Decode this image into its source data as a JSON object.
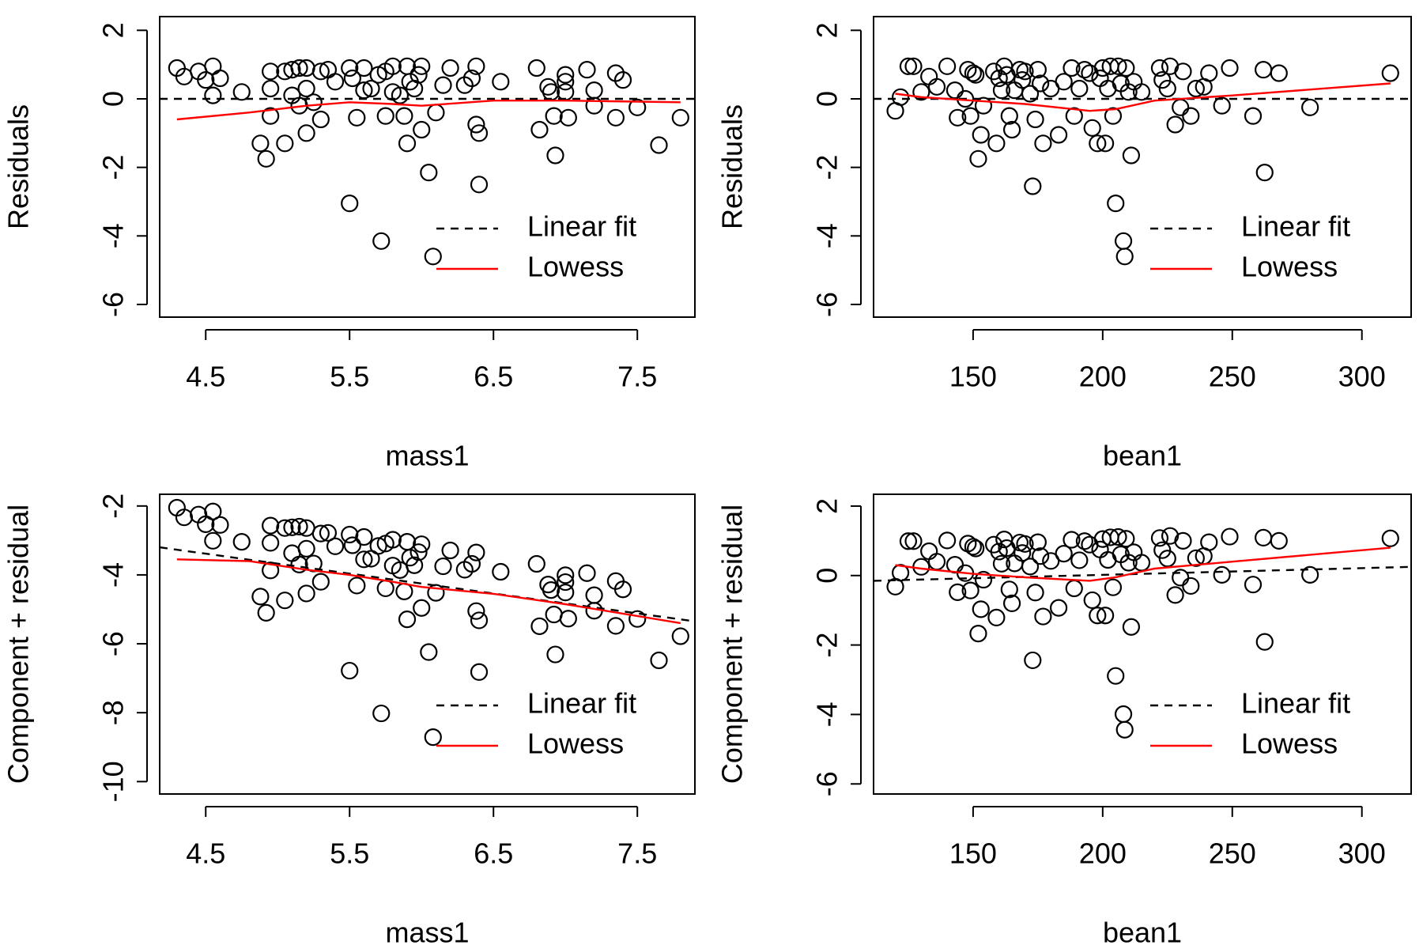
{
  "chart_data": [
    {
      "type": "scatter",
      "x_label": "mass1",
      "y_label": "Residuals",
      "xlim": [
        4.18,
        7.9
      ],
      "ylim": [
        -6.37,
        2.4
      ],
      "xticks": [
        4.5,
        5.5,
        6.5,
        7.5
      ],
      "yticks": [
        -6,
        -4,
        -2,
        0,
        2
      ],
      "color": "#000000",
      "x": [
        4.3,
        4.35,
        4.45,
        4.5,
        4.55,
        4.55,
        4.6,
        4.75,
        4.88,
        4.92,
        4.95,
        4.95,
        4.95,
        5.05,
        5.05,
        5.1,
        5.1,
        5.15,
        5.15,
        5.2,
        5.2,
        5.2,
        5.25,
        5.3,
        5.3,
        5.35,
        5.4,
        5.5,
        5.5,
        5.52,
        5.55,
        5.6,
        5.6,
        5.65,
        5.7,
        5.72,
        5.75,
        5.75,
        5.8,
        5.8,
        5.85,
        5.88,
        5.9,
        5.9,
        5.92,
        5.95,
        5.98,
        6.0,
        6.0,
        6.05,
        6.08,
        6.1,
        6.15,
        6.2,
        6.3,
        6.35,
        6.38,
        6.38,
        6.4,
        6.4,
        6.55,
        6.8,
        6.82,
        6.88,
        6.9,
        6.92,
        6.93,
        7.0,
        7.0,
        7.0,
        7.02,
        7.15,
        7.2,
        7.2,
        7.35,
        7.35,
        7.4,
        7.5,
        7.65,
        7.8
      ],
      "values": [
        0.9,
        0.65,
        0.8,
        0.55,
        0.95,
        0.1,
        0.6,
        0.2,
        -1.3,
        -1.75,
        0.8,
        0.3,
        -0.5,
        0.8,
        -1.3,
        0.85,
        0.1,
        0.9,
        -0.2,
        0.9,
        -1.0,
        0.3,
        -0.1,
        -0.6,
        0.8,
        0.85,
        0.5,
        0.9,
        -3.05,
        0.6,
        -0.55,
        0.9,
        0.25,
        0.3,
        0.7,
        -4.15,
        0.8,
        -0.5,
        0.95,
        0.2,
        0.1,
        -0.5,
        -1.3,
        0.95,
        0.5,
        0.3,
        0.7,
        -0.9,
        0.95,
        -2.15,
        -4.6,
        -0.4,
        0.4,
        0.9,
        0.4,
        0.6,
        -0.75,
        0.95,
        -2.5,
        -1.0,
        0.5,
        0.9,
        -0.9,
        0.35,
        0.2,
        -0.5,
        -1.65,
        0.5,
        0.7,
        0.2,
        -0.55,
        0.85,
        -0.2,
        0.25,
        0.75,
        -0.55,
        0.55,
        -0.25,
        -1.35,
        -0.55
      ],
      "series": [
        {
          "name": "Linear fit",
          "color": "#000000",
          "dash": true,
          "x": [
            4.18,
            7.9
          ],
          "values": [
            0,
            0
          ]
        },
        {
          "name": "Lowess",
          "color": "#ff0000",
          "dash": false,
          "x": [
            4.3,
            4.8,
            5.2,
            5.5,
            5.8,
            6.0,
            6.5,
            7.0,
            7.8
          ],
          "values": [
            -0.6,
            -0.4,
            -0.2,
            -0.1,
            -0.15,
            -0.2,
            -0.05,
            -0.05,
            -0.1
          ]
        }
      ]
    },
    {
      "type": "scatter",
      "x_label": "bean1",
      "y_label": "Residuals",
      "xlim": [
        111.6,
        319
      ],
      "ylim": [
        -6.37,
        2.4
      ],
      "xticks": [
        150,
        200,
        250,
        300
      ],
      "yticks": [
        -6,
        -4,
        -2,
        0,
        2
      ],
      "color": "#000000",
      "x": [
        120,
        122,
        125,
        127,
        130,
        133,
        136,
        140,
        143,
        144,
        147,
        148,
        149,
        150,
        151,
        152,
        153,
        154,
        158,
        159,
        160,
        161,
        162,
        163,
        164,
        165,
        166,
        168,
        169,
        170,
        172,
        173,
        174,
        175,
        176,
        177,
        180,
        183,
        185,
        188,
        189,
        191,
        193,
        195,
        196,
        198,
        199,
        200,
        201,
        202,
        203,
        204,
        205,
        206,
        207,
        208,
        208.5,
        209,
        210,
        211,
        212,
        215,
        222,
        223,
        225,
        226,
        228,
        230,
        231,
        234,
        236,
        239,
        241,
        246,
        249,
        258,
        262,
        262.5,
        268,
        280,
        311
      ],
      "values": [
        -0.35,
        0.05,
        0.95,
        0.95,
        0.2,
        0.65,
        0.35,
        0.95,
        0.25,
        -0.55,
        0.0,
        0.85,
        -0.5,
        0.75,
        0.7,
        -1.75,
        -1.05,
        -0.2,
        0.8,
        -1.3,
        0.6,
        0.25,
        0.95,
        0.7,
        -0.5,
        -0.9,
        0.25,
        0.85,
        0.55,
        0.8,
        0.15,
        -2.55,
        -0.6,
        0.85,
        0.45,
        -1.3,
        0.3,
        -1.05,
        0.5,
        0.9,
        -0.5,
        0.3,
        0.85,
        0.75,
        -0.85,
        -1.3,
        0.6,
        0.9,
        -1.3,
        0.3,
        0.95,
        -0.5,
        -3.05,
        0.95,
        0.45,
        -4.15,
        -4.6,
        0.9,
        0.2,
        -1.65,
        0.5,
        0.2,
        0.9,
        0.55,
        0.3,
        0.95,
        -0.75,
        -0.25,
        0.8,
        -0.5,
        0.3,
        0.35,
        0.75,
        -0.2,
        0.9,
        -0.5,
        0.85,
        -2.15,
        0.75,
        -0.25,
        0.75
      ],
      "series": [
        {
          "name": "Linear fit",
          "color": "#000000",
          "dash": true,
          "x": [
            111.6,
            319
          ],
          "values": [
            0,
            0
          ]
        },
        {
          "name": "Lowess",
          "color": "#ff0000",
          "dash": false,
          "x": [
            120,
            130,
            150,
            170,
            195,
            205,
            220,
            250,
            311
          ],
          "values": [
            0.15,
            0.05,
            -0.05,
            -0.15,
            -0.35,
            -0.3,
            -0.05,
            0.1,
            0.45
          ]
        }
      ]
    },
    {
      "type": "scatter",
      "x_label": "mass1",
      "y_label": "Component + residual",
      "xlim": [
        4.18,
        7.9
      ],
      "ylim": [
        -10.36,
        -1.66
      ],
      "xticks": [
        4.5,
        5.5,
        6.5,
        7.5
      ],
      "yticks": [
        -10,
        -8,
        -6,
        -4,
        -2
      ],
      "color": "#000000",
      "x": [
        4.3,
        4.35,
        4.45,
        4.5,
        4.55,
        4.55,
        4.6,
        4.75,
        4.88,
        4.92,
        4.95,
        4.95,
        4.95,
        5.05,
        5.05,
        5.1,
        5.1,
        5.15,
        5.15,
        5.2,
        5.2,
        5.2,
        5.25,
        5.3,
        5.3,
        5.35,
        5.4,
        5.5,
        5.5,
        5.52,
        5.55,
        5.6,
        5.6,
        5.65,
        5.7,
        5.72,
        5.75,
        5.75,
        5.8,
        5.8,
        5.85,
        5.88,
        5.9,
        5.9,
        5.92,
        5.95,
        5.98,
        6.0,
        6.0,
        6.05,
        6.08,
        6.1,
        6.15,
        6.2,
        6.3,
        6.35,
        6.38,
        6.38,
        6.4,
        6.4,
        6.55,
        6.8,
        6.82,
        6.88,
        6.9,
        6.92,
        6.93,
        7.0,
        7.0,
        7.0,
        7.02,
        7.15,
        7.2,
        7.2,
        7.35,
        7.35,
        7.4,
        7.5,
        7.65,
        7.8
      ],
      "values": [
        -2.05,
        -2.33,
        -2.25,
        -2.53,
        -2.16,
        -3.01,
        -2.55,
        -3.04,
        -4.63,
        -5.1,
        -2.57,
        -3.07,
        -3.87,
        -2.64,
        -4.74,
        -2.62,
        -3.37,
        -2.6,
        -3.7,
        -2.64,
        -4.54,
        -3.24,
        -3.67,
        -4.2,
        -2.8,
        -2.78,
        -3.17,
        -2.83,
        -6.78,
        -3.14,
        -4.31,
        -2.9,
        -3.55,
        -3.53,
        -3.16,
        -8.02,
        -3.09,
        -4.39,
        -2.98,
        -3.73,
        -3.86,
        -4.48,
        -5.29,
        -3.04,
        -3.5,
        -3.72,
        -3.34,
        -4.96,
        -3.11,
        -6.24,
        -8.71,
        -4.52,
        -3.75,
        -3.29,
        -3.85,
        -3.68,
        -5.05,
        -3.35,
        -6.82,
        -5.32,
        -3.91,
        -3.68,
        -5.49,
        -4.28,
        -4.44,
        -5.15,
        -6.31,
        -4.21,
        -4.01,
        -4.51,
        -5.27,
        -3.95,
        -5.04,
        -4.59,
        -4.18,
        -5.48,
        -4.42,
        -5.28,
        -6.48,
        -5.78
      ],
      "series": [
        {
          "name": "Linear fit",
          "color": "#000000",
          "dash": true,
          "x": [
            4.18,
            7.9
          ],
          "values": [
            -3.2,
            -5.35
          ]
        },
        {
          "name": "Lowess",
          "color": "#ff0000",
          "dash": false,
          "x": [
            4.3,
            4.8,
            5.2,
            5.5,
            5.8,
            6.0,
            6.5,
            7.0,
            7.8
          ],
          "values": [
            -3.55,
            -3.6,
            -3.85,
            -4.0,
            -4.2,
            -4.35,
            -4.55,
            -4.85,
            -5.4
          ]
        }
      ]
    },
    {
      "type": "scatter",
      "x_label": "bean1",
      "y_label": "Component + residual",
      "xlim": [
        111.6,
        319
      ],
      "ylim": [
        -6.29,
        2.34
      ],
      "xticks": [
        150,
        200,
        250,
        300
      ],
      "yticks": [
        -6,
        -4,
        -2,
        0,
        2
      ],
      "color": "#000000",
      "x": [
        120,
        122,
        125,
        127,
        130,
        133,
        136,
        140,
        143,
        144,
        147,
        148,
        149,
        150,
        151,
        152,
        153,
        154,
        158,
        159,
        160,
        161,
        162,
        163,
        164,
        165,
        166,
        168,
        169,
        170,
        172,
        173,
        174,
        175,
        176,
        177,
        180,
        183,
        185,
        188,
        189,
        191,
        193,
        195,
        196,
        198,
        199,
        200,
        201,
        202,
        203,
        204,
        205,
        206,
        207,
        208,
        208.5,
        209,
        210,
        211,
        212,
        215,
        222,
        223,
        225,
        226,
        228,
        230,
        231,
        234,
        236,
        239,
        241,
        246,
        249,
        258,
        262,
        262.5,
        268,
        280,
        311
      ],
      "values": [
        -0.32,
        0.08,
        0.99,
        0.99,
        0.25,
        0.7,
        0.4,
        1.01,
        0.31,
        -0.48,
        0.07,
        0.92,
        -0.43,
        0.83,
        0.78,
        -1.67,
        -0.97,
        -0.12,
        0.89,
        -1.21,
        0.69,
        0.34,
        1.04,
        0.79,
        -0.4,
        -0.8,
        0.35,
        0.95,
        0.65,
        0.91,
        0.26,
        -2.44,
        -0.49,
        0.96,
        0.56,
        -1.18,
        0.42,
        -0.93,
        0.63,
        1.03,
        -0.37,
        0.44,
        0.99,
        0.89,
        -0.71,
        -1.15,
        0.75,
        1.05,
        -1.15,
        0.45,
        1.1,
        -0.34,
        -2.89,
        1.11,
        0.61,
        -3.99,
        -4.44,
        1.06,
        0.37,
        -1.48,
        0.67,
        0.37,
        1.08,
        0.73,
        0.49,
        1.14,
        -0.56,
        -0.06,
        1.0,
        -0.3,
        0.5,
        0.56,
        0.96,
        0.02,
        1.12,
        -0.26,
        1.09,
        -1.91,
        1.0,
        0.02,
        1.07
      ],
      "series": [
        {
          "name": "Linear fit",
          "color": "#000000",
          "dash": true,
          "x": [
            111.6,
            319
          ],
          "values": [
            -0.15,
            0.25
          ]
        },
        {
          "name": "Lowess",
          "color": "#ff0000",
          "dash": false,
          "x": [
            120,
            130,
            150,
            170,
            195,
            205,
            220,
            250,
            311
          ],
          "values": [
            0.3,
            0.2,
            0.05,
            -0.05,
            -0.15,
            -0.05,
            0.2,
            0.4,
            0.8
          ]
        }
      ]
    }
  ]
}
